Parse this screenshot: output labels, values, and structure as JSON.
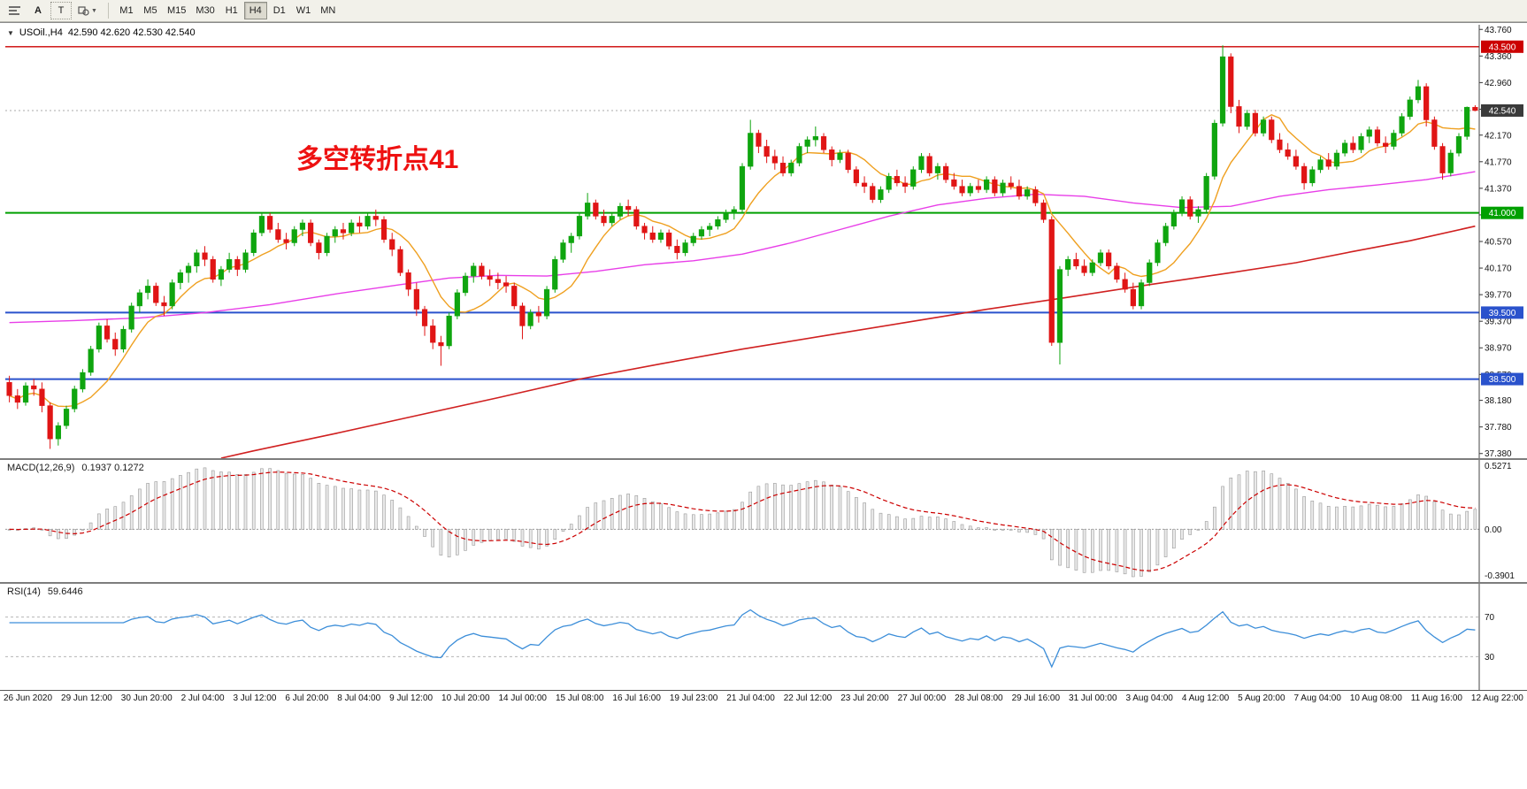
{
  "toolbar": {
    "text_tool": "A",
    "textbox_tool": "T",
    "timeframes": [
      "M1",
      "M5",
      "M15",
      "M30",
      "H1",
      "H4",
      "D1",
      "W1",
      "MN"
    ],
    "active_timeframe": "H4"
  },
  "chart_header": {
    "symbol": "USOil.,H4",
    "ohlc": "42.590 42.620 42.530 42.540"
  },
  "annotation": {
    "text": "多空转折点41",
    "color": "#ee1111"
  },
  "colors": {
    "up": "#0fa50f",
    "down": "#e01515",
    "ma_fast": "#efa020",
    "ma_mid": "#e83ee8",
    "ma_slow": "#d02020",
    "macd_signal": "#cc0000",
    "macd_hist_fill": "#e9e9e9",
    "macd_hist_stroke": "#9a9a9a",
    "rsi_line": "#3c8ed9",
    "current_badge": "#3a3a3a",
    "axis_text": "#111111"
  },
  "chart_data": {
    "type": "candlestick",
    "symbol": "USOil",
    "timeframe": "H4",
    "title": "USOil.,H4 42.590 42.620 42.530 42.540",
    "price_axis": {
      "view_min": 37.31,
      "view_max": 43.83,
      "ticks": [
        "43.760",
        "43.360",
        "42.960",
        "42.560",
        "42.170",
        "41.770",
        "41.370",
        "40.970",
        "40.570",
        "40.170",
        "39.770",
        "39.370",
        "38.970",
        "38.570",
        "38.180",
        "37.780",
        "37.380"
      ]
    },
    "levels": [
      {
        "price": 43.5,
        "label": "43.500",
        "color": "#cc0000",
        "width": 1.4
      },
      {
        "price": 41.0,
        "label": "41.000",
        "color": "#00a000",
        "width": 2
      },
      {
        "price": 39.5,
        "label": "39.500",
        "color": "#2a52cc",
        "width": 2
      },
      {
        "price": 38.5,
        "label": "38.500",
        "color": "#2a52cc",
        "width": 2
      }
    ],
    "current_price": {
      "value": 42.54,
      "label": "42.540"
    },
    "ma_fast_period": 8,
    "ma_slow_path": [
      [
        26,
        37.31
      ],
      [
        30,
        37.42
      ],
      [
        40,
        37.68
      ],
      [
        50,
        37.95
      ],
      [
        60,
        38.22
      ],
      [
        70,
        38.5
      ],
      [
        80,
        38.73
      ],
      [
        90,
        38.95
      ],
      [
        100,
        39.15
      ],
      [
        110,
        39.35
      ],
      [
        120,
        39.55
      ],
      [
        130,
        39.73
      ],
      [
        140,
        39.92
      ],
      [
        150,
        40.1
      ],
      [
        158,
        40.25
      ],
      [
        165,
        40.42
      ],
      [
        172,
        40.58
      ],
      [
        180,
        40.8
      ]
    ],
    "ma_mid_path": [
      [
        0,
        39.35
      ],
      [
        8,
        39.38
      ],
      [
        16,
        39.42
      ],
      [
        24,
        39.5
      ],
      [
        32,
        39.62
      ],
      [
        40,
        39.78
      ],
      [
        48,
        39.92
      ],
      [
        54,
        40.02
      ],
      [
        60,
        40.06
      ],
      [
        66,
        40.05
      ],
      [
        72,
        40.12
      ],
      [
        78,
        40.22
      ],
      [
        84,
        40.28
      ],
      [
        90,
        40.38
      ],
      [
        96,
        40.55
      ],
      [
        102,
        40.75
      ],
      [
        108,
        40.95
      ],
      [
        114,
        41.12
      ],
      [
        120,
        41.22
      ],
      [
        126,
        41.28
      ],
      [
        132,
        41.25
      ],
      [
        138,
        41.15
      ],
      [
        144,
        41.08
      ],
      [
        150,
        41.1
      ],
      [
        156,
        41.25
      ],
      [
        162,
        41.35
      ],
      [
        168,
        41.42
      ],
      [
        174,
        41.5
      ],
      [
        180,
        41.62
      ]
    ],
    "candles": [
      [
        38.45,
        38.55,
        38.15,
        38.25
      ],
      [
        38.25,
        38.35,
        38.05,
        38.15
      ],
      [
        38.15,
        38.45,
        38.1,
        38.4
      ],
      [
        38.4,
        38.5,
        38.25,
        38.35
      ],
      [
        38.35,
        38.45,
        38.0,
        38.1
      ],
      [
        38.1,
        38.15,
        37.45,
        37.6
      ],
      [
        37.6,
        37.85,
        37.5,
        37.8
      ],
      [
        37.8,
        38.1,
        37.75,
        38.05
      ],
      [
        38.05,
        38.4,
        38.0,
        38.35
      ],
      [
        38.35,
        38.65,
        38.3,
        38.6
      ],
      [
        38.6,
        39.0,
        38.55,
        38.95
      ],
      [
        38.95,
        39.35,
        38.9,
        39.3
      ],
      [
        39.3,
        39.4,
        39.05,
        39.1
      ],
      [
        39.1,
        39.2,
        38.85,
        38.95
      ],
      [
        38.95,
        39.3,
        38.9,
        39.25
      ],
      [
        39.25,
        39.65,
        39.2,
        39.6
      ],
      [
        39.6,
        39.85,
        39.5,
        39.8
      ],
      [
        39.8,
        40.0,
        39.7,
        39.9
      ],
      [
        39.9,
        39.95,
        39.6,
        39.65
      ],
      [
        39.65,
        39.75,
        39.45,
        39.6
      ],
      [
        39.6,
        40.0,
        39.55,
        39.95
      ],
      [
        39.95,
        40.15,
        39.85,
        40.1
      ],
      [
        40.1,
        40.25,
        39.95,
        40.2
      ],
      [
        40.2,
        40.45,
        40.1,
        40.4
      ],
      [
        40.4,
        40.5,
        40.2,
        40.3
      ],
      [
        40.3,
        40.35,
        39.95,
        40.0
      ],
      [
        40.0,
        40.2,
        39.9,
        40.15
      ],
      [
        40.15,
        40.4,
        40.1,
        40.3
      ],
      [
        40.3,
        40.35,
        40.05,
        40.15
      ],
      [
        40.15,
        40.45,
        40.1,
        40.4
      ],
      [
        40.4,
        40.75,
        40.35,
        40.7
      ],
      [
        40.7,
        41.0,
        40.65,
        40.95
      ],
      [
        40.95,
        41.0,
        40.7,
        40.75
      ],
      [
        40.75,
        40.85,
        40.55,
        40.6
      ],
      [
        40.6,
        40.7,
        40.45,
        40.55
      ],
      [
        40.55,
        40.8,
        40.5,
        40.75
      ],
      [
        40.75,
        40.9,
        40.65,
        40.85
      ],
      [
        40.85,
        40.9,
        40.5,
        40.55
      ],
      [
        40.55,
        40.6,
        40.3,
        40.4
      ],
      [
        40.4,
        40.7,
        40.35,
        40.65
      ],
      [
        40.65,
        40.8,
        40.55,
        40.75
      ],
      [
        40.75,
        40.85,
        40.6,
        40.7
      ],
      [
        40.7,
        40.9,
        40.65,
        40.85
      ],
      [
        40.85,
        40.95,
        40.7,
        40.8
      ],
      [
        40.8,
        41.0,
        40.75,
        40.95
      ],
      [
        40.95,
        41.05,
        40.8,
        40.9
      ],
      [
        40.9,
        40.95,
        40.55,
        40.6
      ],
      [
        40.6,
        40.7,
        40.35,
        40.45
      ],
      [
        40.45,
        40.5,
        40.05,
        40.1
      ],
      [
        40.1,
        40.15,
        39.75,
        39.85
      ],
      [
        39.85,
        39.95,
        39.45,
        39.55
      ],
      [
        39.55,
        39.6,
        39.15,
        39.3
      ],
      [
        39.3,
        39.4,
        38.95,
        39.05
      ],
      [
        39.05,
        39.15,
        38.7,
        39.0
      ],
      [
        39.0,
        39.5,
        38.95,
        39.45
      ],
      [
        39.45,
        39.85,
        39.4,
        39.8
      ],
      [
        39.8,
        40.1,
        39.75,
        40.05
      ],
      [
        40.05,
        40.25,
        39.95,
        40.2
      ],
      [
        40.2,
        40.25,
        40.0,
        40.05
      ],
      [
        40.05,
        40.15,
        39.9,
        40.0
      ],
      [
        40.0,
        40.1,
        39.85,
        39.95
      ],
      [
        39.95,
        40.05,
        39.8,
        39.9
      ],
      [
        39.9,
        39.95,
        39.55,
        39.6
      ],
      [
        39.6,
        39.65,
        39.1,
        39.3
      ],
      [
        39.3,
        39.55,
        39.25,
        39.5
      ],
      [
        39.5,
        39.6,
        39.35,
        39.45
      ],
      [
        39.45,
        39.9,
        39.4,
        39.85
      ],
      [
        39.85,
        40.35,
        39.8,
        40.3
      ],
      [
        40.3,
        40.6,
        40.25,
        40.55
      ],
      [
        40.55,
        40.7,
        40.4,
        40.65
      ],
      [
        40.65,
        41.0,
        40.6,
        40.95
      ],
      [
        40.95,
        41.3,
        40.9,
        41.15
      ],
      [
        41.15,
        41.2,
        40.9,
        40.95
      ],
      [
        40.95,
        41.05,
        40.8,
        40.85
      ],
      [
        40.85,
        41.0,
        40.8,
        40.95
      ],
      [
        40.95,
        41.15,
        40.9,
        41.1
      ],
      [
        41.1,
        41.2,
        40.95,
        41.05
      ],
      [
        41.05,
        41.1,
        40.75,
        40.8
      ],
      [
        40.8,
        40.85,
        40.6,
        40.7
      ],
      [
        40.7,
        40.8,
        40.55,
        40.6
      ],
      [
        40.6,
        40.75,
        40.55,
        40.7
      ],
      [
        40.7,
        40.75,
        40.45,
        40.5
      ],
      [
        40.5,
        40.6,
        40.3,
        40.4
      ],
      [
        40.4,
        40.6,
        40.35,
        40.55
      ],
      [
        40.55,
        40.7,
        40.5,
        40.65
      ],
      [
        40.65,
        40.8,
        40.6,
        40.75
      ],
      [
        40.75,
        40.85,
        40.65,
        40.8
      ],
      [
        40.8,
        40.95,
        40.75,
        40.9
      ],
      [
        40.9,
        41.05,
        40.85,
        41.0
      ],
      [
        41.0,
        41.1,
        40.9,
        41.05
      ],
      [
        41.05,
        41.75,
        41.0,
        41.7
      ],
      [
        41.7,
        42.4,
        41.65,
        42.2
      ],
      [
        42.2,
        42.25,
        41.9,
        42.0
      ],
      [
        42.0,
        42.1,
        41.75,
        41.85
      ],
      [
        41.85,
        41.95,
        41.65,
        41.75
      ],
      [
        41.75,
        41.85,
        41.55,
        41.6
      ],
      [
        41.6,
        41.8,
        41.55,
        41.75
      ],
      [
        41.75,
        42.05,
        41.7,
        42.0
      ],
      [
        42.0,
        42.15,
        41.9,
        42.1
      ],
      [
        42.1,
        42.3,
        42.0,
        42.15
      ],
      [
        42.15,
        42.2,
        41.9,
        41.95
      ],
      [
        41.95,
        42.0,
        41.7,
        41.8
      ],
      [
        41.8,
        41.95,
        41.75,
        41.9
      ],
      [
        41.9,
        41.95,
        41.6,
        41.65
      ],
      [
        41.65,
        41.7,
        41.4,
        41.45
      ],
      [
        41.45,
        41.55,
        41.3,
        41.4
      ],
      [
        41.4,
        41.45,
        41.15,
        41.2
      ],
      [
        41.2,
        41.4,
        41.15,
        41.35
      ],
      [
        41.35,
        41.6,
        41.3,
        41.55
      ],
      [
        41.55,
        41.65,
        41.4,
        41.45
      ],
      [
        41.45,
        41.55,
        41.3,
        41.4
      ],
      [
        41.4,
        41.7,
        41.35,
        41.65
      ],
      [
        41.65,
        41.9,
        41.6,
        41.85
      ],
      [
        41.85,
        41.9,
        41.55,
        41.6
      ],
      [
        41.6,
        41.75,
        41.5,
        41.7
      ],
      [
        41.7,
        41.75,
        41.45,
        41.5
      ],
      [
        41.5,
        41.6,
        41.35,
        41.4
      ],
      [
        41.4,
        41.5,
        41.25,
        41.3
      ],
      [
        41.3,
        41.45,
        41.25,
        41.4
      ],
      [
        41.4,
        41.5,
        41.3,
        41.35
      ],
      [
        41.35,
        41.55,
        41.3,
        41.5
      ],
      [
        41.5,
        41.55,
        41.25,
        41.3
      ],
      [
        41.3,
        41.5,
        41.25,
        41.45
      ],
      [
        41.45,
        41.55,
        41.35,
        41.4
      ],
      [
        41.4,
        41.5,
        41.2,
        41.25
      ],
      [
        41.25,
        41.4,
        41.2,
        41.35
      ],
      [
        41.35,
        41.4,
        41.1,
        41.15
      ],
      [
        41.15,
        41.2,
        40.85,
        40.9
      ],
      [
        40.9,
        40.95,
        39.0,
        39.05
      ],
      [
        39.05,
        40.2,
        38.72,
        40.15
      ],
      [
        40.15,
        40.35,
        40.05,
        40.3
      ],
      [
        40.3,
        40.4,
        40.15,
        40.2
      ],
      [
        40.2,
        40.3,
        40.05,
        40.1
      ],
      [
        40.1,
        40.3,
        40.05,
        40.25
      ],
      [
        40.25,
        40.45,
        40.2,
        40.4
      ],
      [
        40.4,
        40.45,
        40.15,
        40.2
      ],
      [
        40.2,
        40.25,
        39.95,
        40.0
      ],
      [
        40.0,
        40.1,
        39.8,
        39.85
      ],
      [
        39.85,
        39.95,
        39.55,
        39.6
      ],
      [
        39.6,
        40.0,
        39.55,
        39.95
      ],
      [
        39.95,
        40.3,
        39.9,
        40.25
      ],
      [
        40.25,
        40.6,
        40.2,
        40.55
      ],
      [
        40.55,
        40.85,
        40.5,
        40.8
      ],
      [
        40.8,
        41.05,
        40.75,
        41.0
      ],
      [
        41.0,
        41.25,
        40.95,
        41.2
      ],
      [
        41.2,
        41.25,
        40.9,
        40.95
      ],
      [
        40.95,
        41.1,
        40.85,
        41.05
      ],
      [
        41.05,
        41.6,
        41.0,
        41.55
      ],
      [
        41.55,
        42.4,
        41.5,
        42.35
      ],
      [
        42.35,
        43.52,
        42.3,
        43.35
      ],
      [
        43.35,
        43.4,
        42.5,
        42.6
      ],
      [
        42.6,
        42.7,
        42.2,
        42.3
      ],
      [
        42.3,
        42.55,
        42.25,
        42.5
      ],
      [
        42.5,
        42.55,
        42.15,
        42.2
      ],
      [
        42.2,
        42.45,
        42.15,
        42.4
      ],
      [
        42.4,
        42.45,
        42.05,
        42.1
      ],
      [
        42.1,
        42.2,
        41.9,
        41.95
      ],
      [
        41.95,
        42.05,
        41.8,
        41.85
      ],
      [
        41.85,
        41.95,
        41.65,
        41.7
      ],
      [
        41.7,
        41.75,
        41.35,
        41.45
      ],
      [
        41.45,
        41.7,
        41.4,
        41.65
      ],
      [
        41.65,
        41.85,
        41.6,
        41.8
      ],
      [
        41.8,
        41.9,
        41.65,
        41.7
      ],
      [
        41.7,
        41.95,
        41.65,
        41.9
      ],
      [
        41.9,
        42.1,
        41.85,
        42.05
      ],
      [
        42.05,
        42.15,
        41.9,
        41.95
      ],
      [
        41.95,
        42.2,
        41.9,
        42.15
      ],
      [
        42.15,
        42.3,
        42.05,
        42.25
      ],
      [
        42.25,
        42.3,
        42.0,
        42.05
      ],
      [
        42.05,
        42.15,
        41.9,
        42.0
      ],
      [
        42.0,
        42.25,
        41.95,
        42.2
      ],
      [
        42.2,
        42.5,
        42.15,
        42.45
      ],
      [
        42.45,
        42.75,
        42.4,
        42.7
      ],
      [
        42.7,
        43.0,
        42.65,
        42.9
      ],
      [
        42.9,
        42.95,
        42.3,
        42.4
      ],
      [
        42.4,
        42.45,
        41.95,
        42.0
      ],
      [
        42.0,
        42.05,
        41.5,
        41.6
      ],
      [
        41.6,
        41.95,
        41.55,
        41.9
      ],
      [
        41.9,
        42.2,
        41.85,
        42.15
      ],
      [
        42.15,
        42.6,
        42.1,
        42.59
      ],
      [
        42.59,
        42.62,
        42.53,
        42.54
      ]
    ],
    "time_labels": [
      "26 Jun 2020",
      "29 Jun 12:00",
      "30 Jun 20:00",
      "2 Jul 04:00",
      "3 Jul 12:00",
      "6 Jul 20:00",
      "8 Jul 04:00",
      "9 Jul 12:00",
      "10 Jul 20:00",
      "14 Jul 00:00",
      "15 Jul 08:00",
      "16 Jul 16:00",
      "19 Jul 23:00",
      "21 Jul 04:00",
      "22 Jul 12:00",
      "23 Jul 20:00",
      "27 Jul 00:00",
      "28 Jul 08:00",
      "29 Jul 16:00",
      "31 Jul 00:00",
      "3 Aug 04:00",
      "4 Aug 12:00",
      "5 Aug 20:00",
      "7 Aug 04:00",
      "10 Aug 08:00",
      "11 Aug 16:00",
      "12 Aug 22:00"
    ],
    "macd": {
      "label": "MACD(12,26,9)",
      "values_label": "0.1937 0.1272",
      "params": [
        12,
        26,
        9
      ],
      "axis_max": 0.5271,
      "axis_min": -0.3901,
      "axis_labels": [
        "0.5271",
        "0.00",
        "-0.3901"
      ]
    },
    "rsi": {
      "label": "RSI(14)",
      "value_label": "59.6446",
      "period": 14,
      "levels": [
        70,
        30
      ],
      "range": [
        0,
        100
      ]
    }
  }
}
